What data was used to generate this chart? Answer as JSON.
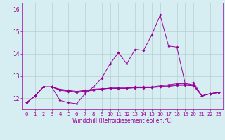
{
  "xlabel": "Windchill (Refroidissement éolien,°C)",
  "x": [
    0,
    1,
    2,
    3,
    4,
    5,
    6,
    7,
    8,
    9,
    10,
    11,
    12,
    13,
    14,
    15,
    16,
    17,
    18,
    19,
    20,
    21,
    22,
    23
  ],
  "series1": [
    11.8,
    12.1,
    12.5,
    12.5,
    11.9,
    11.8,
    11.75,
    12.2,
    12.5,
    12.9,
    13.55,
    14.05,
    13.55,
    14.2,
    14.15,
    14.85,
    15.75,
    14.35,
    14.3,
    12.65,
    12.7,
    12.1,
    12.2,
    12.25
  ],
  "series2": [
    11.8,
    12.1,
    12.5,
    12.5,
    12.35,
    12.3,
    12.25,
    12.3,
    12.35,
    12.4,
    12.45,
    12.45,
    12.45,
    12.5,
    12.5,
    12.5,
    12.55,
    12.6,
    12.65,
    12.65,
    12.6,
    12.1,
    12.2,
    12.25
  ],
  "series3": [
    11.8,
    12.1,
    12.5,
    12.5,
    12.4,
    12.35,
    12.3,
    12.35,
    12.4,
    12.42,
    12.44,
    12.44,
    12.44,
    12.46,
    12.46,
    12.47,
    12.5,
    12.52,
    12.57,
    12.57,
    12.55,
    12.1,
    12.2,
    12.25
  ],
  "series4": [
    11.8,
    12.1,
    12.5,
    12.5,
    12.38,
    12.32,
    12.27,
    12.32,
    12.37,
    12.41,
    12.44,
    12.44,
    12.44,
    12.47,
    12.47,
    12.48,
    12.52,
    12.55,
    12.6,
    12.6,
    12.57,
    12.1,
    12.2,
    12.25
  ],
  "line_color": "#990099",
  "bg_color": "#d6eef2",
  "grid_color": "#b0c8cc",
  "ylim": [
    11.5,
    16.3
  ],
  "yticks": [
    12,
    13,
    14,
    15,
    16
  ],
  "xticks": [
    0,
    1,
    2,
    3,
    4,
    5,
    6,
    7,
    8,
    9,
    10,
    11,
    12,
    13,
    14,
    15,
    16,
    17,
    18,
    19,
    20,
    21,
    22,
    23
  ],
  "linewidth": 0.7,
  "markersize": 2.0,
  "tick_fontsize": 5.5,
  "xlabel_fontsize": 5.5
}
